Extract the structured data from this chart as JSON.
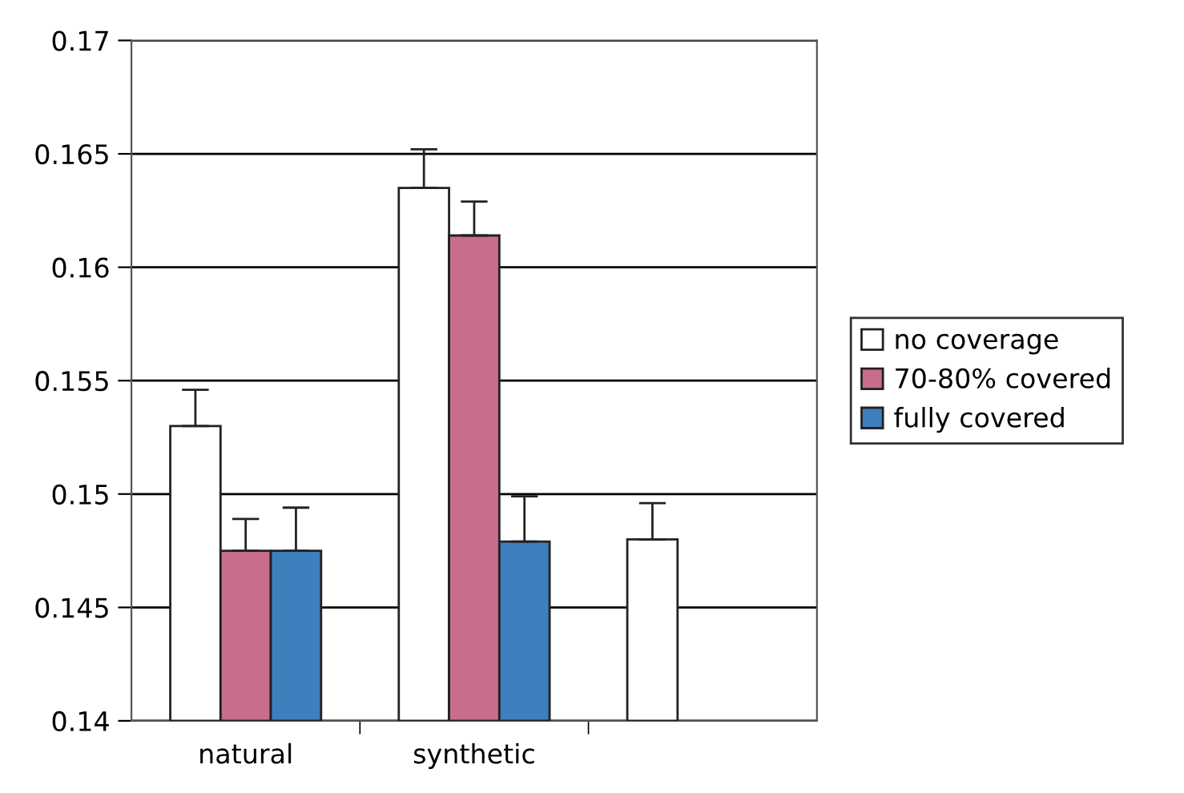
{
  "chart_data": {
    "type": "bar",
    "categories": [
      "natural",
      "synthetic",
      null
    ],
    "series": [
      {
        "name": "no coverage",
        "color": "#ffffff",
        "values": [
          0.153,
          0.1635,
          0.148
        ],
        "errors": [
          [
            0.153,
            0.1546
          ],
          [
            0.1635,
            0.1652
          ],
          [
            0.148,
            0.1496
          ]
        ]
      },
      {
        "name": "70-80% covered",
        "color": "#c86e8a",
        "values": [
          0.1475,
          0.1614,
          null
        ],
        "errors": [
          [
            0.1475,
            0.1489
          ],
          [
            0.1614,
            0.1629
          ],
          null
        ]
      },
      {
        "name": "fully covered",
        "color": "#3e7fbd",
        "values": [
          0.1475,
          0.1479,
          null
        ],
        "errors": [
          [
            0.1475,
            0.1494
          ],
          [
            0.1479,
            0.1499
          ],
          null
        ]
      }
    ],
    "ylim": [
      0.14,
      0.17
    ],
    "yticks": [
      0.14,
      0.145,
      0.15,
      0.155,
      0.16,
      0.165,
      0.17
    ],
    "grid": "y",
    "legend": "right"
  }
}
